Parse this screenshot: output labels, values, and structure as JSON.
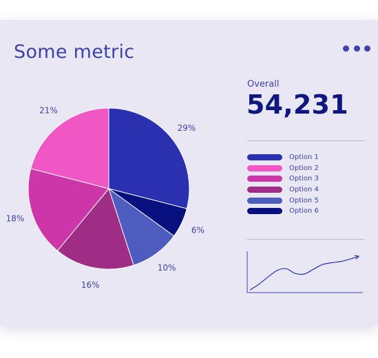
{
  "header": {
    "title": "Some metric",
    "menu_icon": "more-horizontal-icon"
  },
  "summary": {
    "label": "Overall",
    "value": "54,231"
  },
  "colors": {
    "accent": "#3f43a8",
    "value_text": "#0f1780",
    "card_background": "#e8e7f3"
  },
  "chart_data": [
    {
      "type": "pie",
      "title": "",
      "slices": [
        {
          "name": "Option 1",
          "value": 29,
          "label": "29%",
          "color": "#2a31b0"
        },
        {
          "name": "Option 6",
          "value": 6,
          "label": "6%",
          "color": "#07107f"
        },
        {
          "name": "Option 5",
          "value": 10,
          "label": "10%",
          "color": "#4e5bbf"
        },
        {
          "name": "Option 4",
          "value": 16,
          "label": "16%",
          "color": "#9e2d86"
        },
        {
          "name": "Option 3",
          "value": 18,
          "label": "18%",
          "color": "#cc36a9"
        },
        {
          "name": "Option 2",
          "value": 21,
          "label": "21%",
          "color": "#ef57c5"
        }
      ],
      "legend": {
        "position": "right",
        "items": [
          {
            "label": "Option 1",
            "color": "#2a31b0"
          },
          {
            "label": "Option 2",
            "color": "#ef57c5"
          },
          {
            "label": "Option 3",
            "color": "#cc36a9"
          },
          {
            "label": "Option 4",
            "color": "#9e2d86"
          },
          {
            "label": "Option 5",
            "color": "#4e5bbf"
          },
          {
            "label": "Option 6",
            "color": "#07107f"
          }
        ]
      }
    },
    {
      "type": "line",
      "title": "",
      "xlabel": "",
      "ylabel": "",
      "grid": false,
      "x": [
        0,
        1,
        2,
        3,
        4,
        5,
        6,
        7,
        8,
        9,
        10,
        11,
        12
      ],
      "values": [
        2,
        12,
        24,
        35,
        38,
        30,
        29,
        37,
        45,
        48,
        50,
        54,
        59
      ],
      "ylim": [
        0,
        65
      ],
      "line_color": "#2a31b0"
    }
  ]
}
